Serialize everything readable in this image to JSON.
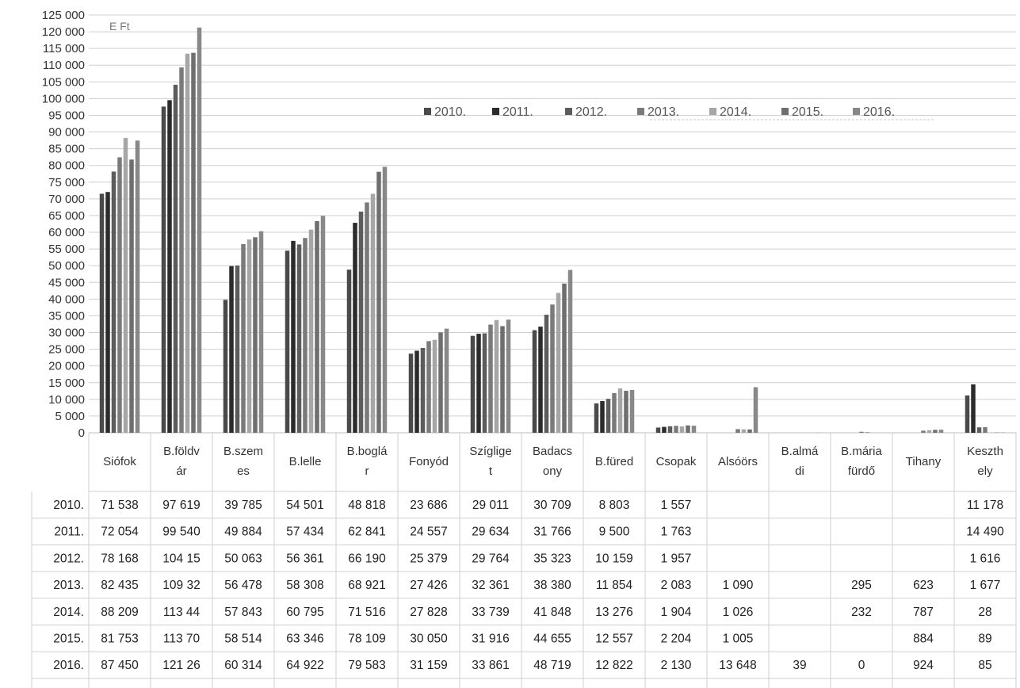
{
  "chart_data": {
    "type": "bar",
    "unit_label": "E Ft",
    "y_ticks": [
      "125 000",
      "120 000",
      "115 000",
      "110 000",
      "105 000",
      "100 000",
      "95 000",
      "90 000",
      "85 000",
      "80 000",
      "75 000",
      "70 000",
      "65 000",
      "60 000",
      "55 000",
      "50 000",
      "45 000",
      "40 000",
      "35 000",
      "30 000",
      "25 000",
      "20 000",
      "15 000",
      "10 000",
      "5 000",
      "0"
    ],
    "ylim": [
      0,
      125000
    ],
    "grid": true,
    "legend_position": "top-center",
    "categories": [
      [
        "Siófok"
      ],
      [
        "B.földv",
        "ár"
      ],
      [
        "B.szem",
        "es"
      ],
      [
        "B.lelle"
      ],
      [
        "B.boglá",
        "r"
      ],
      [
        "Fonyód"
      ],
      [
        "Szíglige",
        "t"
      ],
      [
        "Badacs",
        "ony"
      ],
      [
        "B.füred"
      ],
      [
        "Csopak"
      ],
      [
        "Alsóörs"
      ],
      [
        "B.almá",
        "di"
      ],
      [
        "B.mária",
        "fürdő"
      ],
      [
        "Tihany"
      ],
      [
        "Keszth",
        "ely"
      ]
    ],
    "series": [
      {
        "name": "2010.",
        "row_label": "2010.",
        "color": "#4a4a4a",
        "values": [
          71538,
          97619,
          39785,
          54501,
          48818,
          23686,
          29011,
          30709,
          8803,
          1557,
          null,
          null,
          null,
          null,
          11178
        ],
        "cells": [
          "71 538",
          "97 619",
          "39 785",
          "54 501",
          "48 818",
          "23 686",
          "29 011",
          "30 709",
          "8 803",
          "1 557",
          "",
          "",
          "",
          "",
          "11 178"
        ]
      },
      {
        "name": "2011.",
        "row_label": "2011.",
        "color": "#2b2b2b",
        "values": [
          72054,
          99540,
          49884,
          57434,
          62841,
          24557,
          29634,
          31766,
          9500,
          1763,
          null,
          null,
          null,
          null,
          14490
        ],
        "cells": [
          "72 054",
          "99 540",
          "49 884",
          "57 434",
          "62 841",
          "24 557",
          "29 634",
          "31 766",
          "9 500",
          "1 763",
          "",
          "",
          "",
          "",
          "14 490"
        ]
      },
      {
        "name": "2012.",
        "row_label": "2012.",
        "color": "#5c5c5c",
        "values": [
          78168,
          104150,
          50063,
          56361,
          66190,
          25379,
          29764,
          35323,
          10159,
          1957,
          null,
          null,
          null,
          null,
          1616
        ],
        "cells": [
          "78 168",
          "104 15",
          "50 063",
          "56 361",
          "66 190",
          "25 379",
          "29 764",
          "35 323",
          "10 159",
          "1 957",
          "",
          "",
          "",
          "",
          "1 616"
        ]
      },
      {
        "name": "2013.",
        "row_label": "2013.",
        "color": "#7a7a7a",
        "values": [
          82435,
          109320,
          56478,
          58308,
          68921,
          27426,
          32361,
          38380,
          11854,
          2083,
          1090,
          null,
          295,
          623,
          1677
        ],
        "cells": [
          "82 435",
          "109 32",
          "56 478",
          "58 308",
          "68 921",
          "27 426",
          "32 361",
          "38 380",
          "11 854",
          "2 083",
          "1 090",
          "",
          "295",
          "623",
          "1 677"
        ]
      },
      {
        "name": "2014.",
        "row_label": "2014.",
        "color": "#a6a6a6",
        "values": [
          88209,
          113440,
          57843,
          60795,
          71516,
          27828,
          33739,
          41848,
          13276,
          1904,
          1026,
          null,
          232,
          787,
          28
        ],
        "cells": [
          "88 209",
          "113 44",
          "57 843",
          "60 795",
          "71 516",
          "27 828",
          "33 739",
          "41 848",
          "13 276",
          "1 904",
          "1 026",
          "",
          "232",
          "787",
          "28"
        ]
      },
      {
        "name": "2015.",
        "row_label": "2015.",
        "color": "#6e6e6e",
        "values": [
          81753,
          113700,
          58514,
          63346,
          78109,
          30050,
          31916,
          44655,
          12557,
          2204,
          1005,
          null,
          null,
          884,
          89
        ],
        "cells": [
          "81 753",
          "113 70",
          "58 514",
          "63 346",
          "78 109",
          "30 050",
          "31 916",
          "44 655",
          "12 557",
          "2 204",
          "1 005",
          "",
          "",
          "884",
          "89"
        ]
      },
      {
        "name": "2016.",
        "row_label": "2016.",
        "color": "#888888",
        "values": [
          87450,
          121260,
          60314,
          64922,
          79583,
          31159,
          33861,
          48719,
          12822,
          2130,
          13648,
          39,
          0,
          924,
          85
        ],
        "cells": [
          "87 450",
          "121 26",
          "60 314",
          "64 922",
          "79 583",
          "31 159",
          "33 861",
          "48 719",
          "12 822",
          "2 130",
          "13 648",
          "39",
          "0",
          "924",
          "85"
        ]
      }
    ]
  }
}
